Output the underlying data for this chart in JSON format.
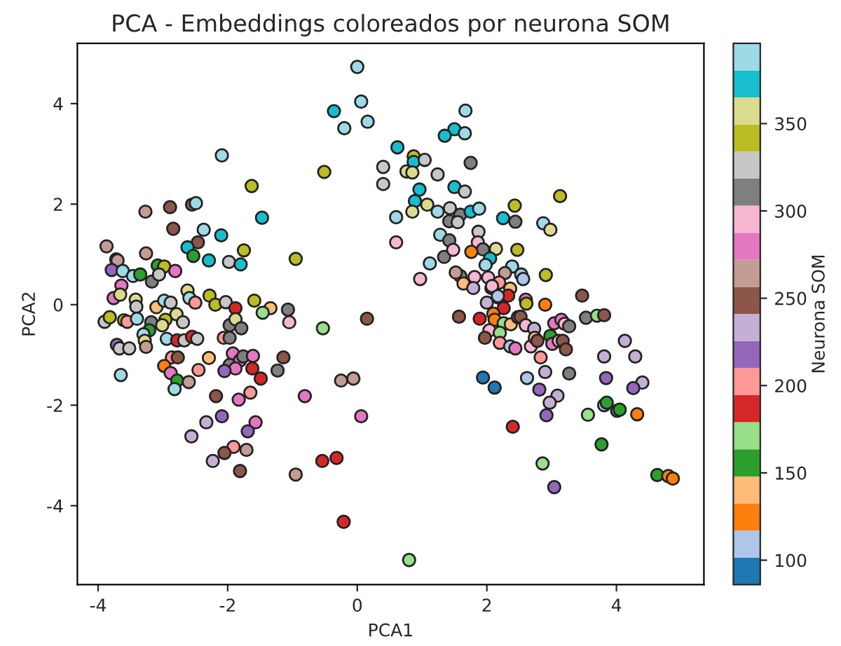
{
  "chart_data": {
    "type": "scatter",
    "title": "PCA - Embeddings coloreados por neurona SOM",
    "xlabel": "PCA1",
    "ylabel": "PCA2",
    "clabel": "Neurona SOM",
    "xlim": [
      -4.32,
      5.35
    ],
    "ylim": [
      -5.57,
      5.2
    ],
    "xticks": [
      -4,
      -2,
      0,
      2,
      4
    ],
    "yticks": [
      -4,
      -2,
      0,
      2,
      4
    ],
    "clim": [
      86,
      396
    ],
    "cticks": [
      100,
      150,
      200,
      250,
      300,
      350
    ],
    "marker": "circle",
    "x": [
      -2.09,
      -0.51,
      -1.63,
      -3.27,
      -2.89,
      -2.55,
      -2.49,
      -1.47,
      -2.84,
      -2.37,
      -2.1,
      -3.87,
      -3.26,
      -2.46,
      -2.62,
      -2.53,
      -2.29,
      -1.75,
      -1.98,
      -1.8,
      -0.95,
      -3.72,
      -3.7,
      -3.79,
      -3.62,
      -3.46,
      -3.35,
      -3.08,
      -2.98,
      -2.81,
      -3.17,
      -3.06,
      -3.64,
      -3.76,
      -3.66,
      -3.42,
      -3.41,
      -2.62,
      -2.59,
      -2.5,
      -2.28,
      -2.19,
      -2.03,
      -1.88,
      -1.59,
      -1.34,
      -1.46,
      -1.07,
      -1.05,
      -0.53,
      -3.9,
      -3.82,
      -3.6,
      -3.55,
      -3.4,
      -3.1,
      -2.98,
      -2.88,
      -2.79,
      -2.96,
      -2.69,
      -3.18,
      -3.01,
      -3.21,
      -3.3,
      -3.28,
      -1.97,
      -1.88,
      -1.79,
      -2.06,
      -1.97,
      -2.94,
      -2.78,
      -2.67,
      -2.55,
      -2.47,
      -3.71,
      -3.67,
      -3.52,
      -3.26,
      -2.86,
      -2.77,
      -2.29,
      -1.92,
      -1.81,
      -1.76,
      -1.61,
      -1.97,
      -1.88,
      -2.05,
      -1.14,
      -1.62,
      -1.23,
      -1.49,
      -2.98,
      -2.88,
      -2.45,
      -2.78,
      -2.6,
      -2.82,
      -3.65,
      -2.18,
      -1.83,
      -1.65,
      -0.81,
      -0.25,
      -2.09,
      -2.33,
      -1.57,
      -1.69,
      -2.56,
      -1.91,
      -2.05,
      -1.71,
      -2.23,
      -1.81,
      -0.95,
      -0.54,
      -0.32,
      0.0,
      0.06,
      -0.36,
      -0.2,
      0.16,
      0.4,
      0.4,
      0.62,
      0.6,
      0.6,
      0.97,
      1.12,
      1.34,
      1.67,
      1.5,
      1.35,
      1.66,
      0.87,
      0.87,
      1.04,
      0.76,
      0.85,
      1.75,
      1.24,
      0.96,
      1.5,
      1.66,
      0.89,
      1.08,
      0.85,
      1.24,
      1.43,
      1.59,
      1.75,
      1.88,
      1.42,
      1.55,
      2.25,
      2.43,
      2.44,
      3.13,
      2.87,
      2.98,
      1.28,
      1.42,
      1.87,
      1.86,
      1.48,
      1.94,
      2.14,
      2.47,
      1.76,
      2.05,
      1.98,
      2.39,
      1.59,
      1.52,
      1.81,
      1.64,
      1.79,
      2.02,
      2.28,
      2.53,
      2.56,
      2.91,
      2.07,
      2.19,
      2.36,
      3.47,
      2.0,
      2.18,
      2.33,
      2.26,
      2.6,
      2.61,
      2.9,
      2.08,
      2.17,
      1.57,
      1.89,
      2.1,
      2.12,
      2.26,
      2.37,
      2.48,
      2.52,
      2.6,
      2.73,
      3.04,
      3.15,
      3.2,
      3.27,
      3.53,
      3.7,
      3.81,
      2.04,
      1.97,
      2.2,
      2.2,
      2.36,
      2.44,
      2.68,
      2.74,
      2.78,
      2.98,
      3.01,
      3.11,
      3.17,
      3.22,
      2.83,
      2.9,
      3.27,
      2.62,
      1.94,
      2.12,
      2.81,
      3.09,
      2.97,
      2.92,
      2.4,
      4.13,
      3.81,
      4.29,
      3.84,
      4.4,
      4.26,
      3.81,
      3.85,
      4.01,
      4.05,
      4.32,
      3.56,
      3.77,
      2.86,
      3.04,
      4.63,
      4.8,
      4.87,
      0.15,
      -0.06,
      0.06,
      -0.21,
      0.8
    ],
    "values": [
      2.97,
      2.64,
      2.36,
      1.85,
      1.94,
      1.99,
      2.02,
      1.73,
      1.51,
      1.49,
      1.38,
      1.16,
      1.02,
      1.24,
      1.14,
      0.97,
      0.88,
      1.08,
      0.85,
      0.8,
      0.91,
      0.9,
      0.88,
      0.69,
      0.67,
      0.57,
      0.6,
      0.78,
      0.76,
      0.67,
      0.46,
      0.6,
      0.38,
      0.13,
      0.2,
      0.1,
      -0.04,
      0.28,
      0.13,
      0.04,
      0.18,
      0.0,
      0.05,
      -0.07,
      0.08,
      -0.07,
      -0.16,
      -0.1,
      -0.35,
      -0.47,
      -0.34,
      -0.25,
      -0.31,
      -0.34,
      -0.28,
      -0.05,
      0.08,
      0.04,
      -0.19,
      -0.3,
      -0.35,
      -0.35,
      -0.41,
      -0.51,
      -0.59,
      -0.72,
      -0.41,
      -0.29,
      -0.47,
      -0.66,
      -0.66,
      -0.68,
      -0.71,
      -0.71,
      -0.64,
      -0.68,
      -0.8,
      -0.87,
      -0.87,
      -0.84,
      -1.05,
      -1.05,
      -1.06,
      -0.97,
      -1.11,
      -1.03,
      -1.02,
      -1.2,
      -1.27,
      -1.32,
      -1.05,
      -1.27,
      -1.31,
      -1.47,
      -1.22,
      -1.36,
      -1.3,
      -1.51,
      -1.54,
      -1.68,
      -1.4,
      -1.82,
      -1.89,
      -1.75,
      -1.82,
      -1.51,
      -2.22,
      -2.34,
      -2.34,
      -2.52,
      -2.62,
      -2.83,
      -2.95,
      -2.89,
      -3.11,
      -3.31,
      -3.38,
      -3.11,
      -3.05,
      4.73,
      4.04,
      3.85,
      3.51,
      3.64,
      2.74,
      2.4,
      3.13,
      1.74,
      1.24,
      0.51,
      0.82,
      0.95,
      3.86,
      3.49,
      3.36,
      3.41,
      2.95,
      2.84,
      2.88,
      2.65,
      2.63,
      2.82,
      2.59,
      2.29,
      2.34,
      2.25,
      2.06,
      1.99,
      1.85,
      1.85,
      1.92,
      1.79,
      1.85,
      1.91,
      1.66,
      1.64,
      1.72,
      1.97,
      1.65,
      2.16,
      1.62,
      1.49,
      1.39,
      1.28,
      1.45,
      1.24,
      1.09,
      1.1,
      1.11,
      1.09,
      1.05,
      0.92,
      0.79,
      0.76,
      0.57,
      0.64,
      0.55,
      0.42,
      0.33,
      0.54,
      0.63,
      0.6,
      0.51,
      0.59,
      0.33,
      0.44,
      0.32,
      0.18,
      0.04,
      0.14,
      0.18,
      -0.07,
      0.1,
      0.02,
      0.0,
      0.37,
      0.17,
      -0.24,
      -0.28,
      -0.18,
      -0.3,
      -0.37,
      -0.39,
      -0.25,
      -0.24,
      -0.41,
      -0.48,
      -0.37,
      -0.3,
      -0.38,
      -0.43,
      -0.26,
      -0.22,
      -0.21,
      -0.51,
      -0.66,
      -0.56,
      -0.76,
      -0.83,
      -0.87,
      -0.83,
      -0.66,
      -0.72,
      -0.62,
      -0.78,
      -0.72,
      -0.72,
      -0.89,
      -1.05,
      -1.34,
      -1.37,
      -1.46,
      -1.45,
      -1.65,
      -1.69,
      -1.81,
      -1.95,
      -2.2,
      -2.43,
      -0.72,
      -1.03,
      -1.03,
      -1.46,
      -1.55,
      -1.66,
      -2.0,
      -1.95,
      -2.11,
      -2.09,
      -2.18,
      -2.19,
      -2.78,
      -3.16,
      -3.63,
      -3.39,
      -3.41,
      -3.46,
      -0.28,
      -1.47,
      -2.22,
      -4.32,
      -5.08
    ],
    "cvalues": [
      388,
      342,
      342,
      264,
      249,
      249,
      388,
      373,
      249,
      388,
      373,
      264,
      264,
      249,
      373,
      156,
      373,
      342,
      326,
      373,
      342,
      249,
      264,
      218,
      388,
      388,
      156,
      156,
      342,
      280,
      311,
      326,
      280,
      280,
      357,
      357,
      326,
      357,
      388,
      202,
      342,
      342,
      326,
      187,
      342,
      140,
      171,
      311,
      295,
      171,
      326,
      342,
      342,
      202,
      388,
      140,
      388,
      326,
      357,
      342,
      326,
      311,
      357,
      156,
      388,
      357,
      311,
      357,
      311,
      202,
      311,
      388,
      187,
      326,
      187,
      326,
      218,
      326,
      326,
      264,
      202,
      249,
      140,
      280,
      280,
      311,
      280,
      311,
      280,
      218,
      249,
      187,
      311,
      187,
      125,
      280,
      202,
      156,
      264,
      388,
      388,
      249,
      280,
      202,
      280,
      264,
      218,
      233,
      280,
      218,
      233,
      202,
      249,
      264,
      233,
      249,
      264,
      187,
      187,
      388,
      388,
      373,
      388,
      388,
      326,
      326,
      373,
      388,
      295,
      295,
      388,
      311,
      388,
      373,
      373,
      388,
      342,
      373,
      326,
      357,
      357,
      311,
      326,
      373,
      373,
      326,
      373,
      357,
      357,
      388,
      326,
      311,
      373,
      388,
      311,
      326,
      373,
      342,
      311,
      342,
      388,
      357,
      388,
      311,
      326,
      295,
      295,
      311,
      357,
      342,
      125,
      373,
      388,
      388,
      311,
      264,
      295,
      140,
      233,
      295,
      264,
      109,
      109,
      342,
      249,
      202,
      140,
      249,
      233,
      233,
      187,
      187,
      280,
      342,
      125,
      295,
      109,
      249,
      187,
      125,
      125,
      171,
      140,
      249,
      249,
      295,
      233,
      280,
      280,
      295,
      311,
      311,
      171,
      249,
      295,
      249,
      171,
      202,
      109,
      280,
      295,
      140,
      249,
      156,
      280,
      295,
      249,
      249,
      202,
      233,
      311,
      109,
      94,
      94,
      218,
      233,
      233,
      218,
      187,
      233,
      233,
      233,
      218,
      233,
      218,
      109,
      156,
      311,
      156,
      125,
      171,
      156,
      171,
      218,
      156,
      125,
      125,
      249,
      264,
      280,
      187,
      171
    ]
  }
}
